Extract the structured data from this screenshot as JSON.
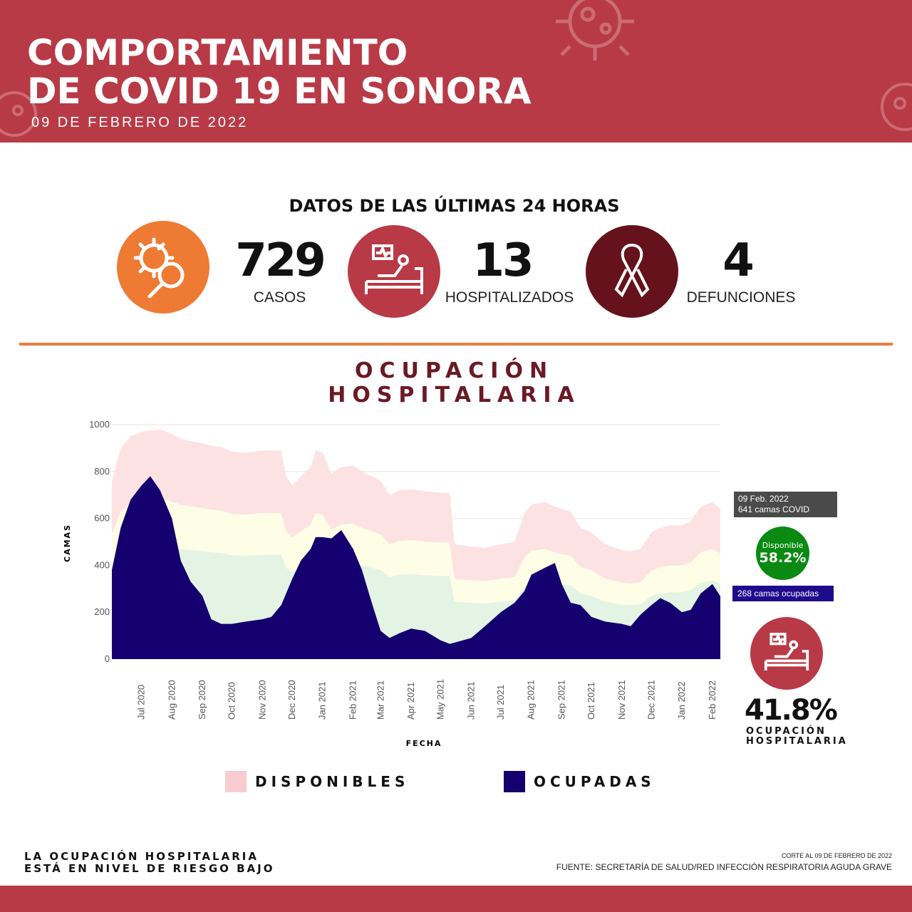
{
  "header": {
    "title_line1": "COMPORTAMIENTO",
    "title_line2": "DE COVID 19 EN SONORA",
    "date": "09 DE FEBRERO DE 2022"
  },
  "summary": {
    "heading": "DATOS DE LAS ÚLTIMAS 24 HORAS",
    "items": [
      {
        "value": "729",
        "label": "CASOS",
        "icon": "virus-magnifier-icon",
        "color": "#ee7a33"
      },
      {
        "value": "13",
        "label": "HOSPITALIZADOS",
        "icon": "hospital-bed-icon",
        "color": "#b83a46"
      },
      {
        "value": "4",
        "label": "DEFUNCIONES",
        "icon": "ribbon-icon",
        "color": "#65121c"
      }
    ]
  },
  "section": {
    "title_line1": "OCUPACIÓN",
    "title_line2": "HOSPITALARIA"
  },
  "annotations": {
    "total_date": "09 Feb. 2022",
    "total_beds": "641 camas COVID",
    "available_label": "Disponible",
    "available_pct": "58.2%",
    "occupied": "268  camas ocupadas",
    "occupancy_pct": "41.8%",
    "occupancy_label1": "OCUPACIÓN",
    "occupancy_label2": "HOSPITALARIA"
  },
  "legend": [
    {
      "label": "DISPONIBLES",
      "color": "#f9cdd0"
    },
    {
      "label": "OCUPADAS",
      "color": "#14006e"
    }
  ],
  "footer": {
    "risk_line1": "LA OCUPACIÓN HOSPITALARIA",
    "risk_line2": "ESTÁ EN NIVEL DE RIESGO BAJO",
    "cutoff": "CORTE AL 09 DE FEBRERO DE 2022",
    "source": "FUENTE: SECRETARÍA DE SALUD/RED INFECCIÓN RESPIRATORIA AGUDA GRAVE"
  },
  "chart_data": {
    "type": "area",
    "xlabel": "FECHA",
    "ylabel": "CAMAS",
    "ylim": [
      0,
      1000
    ],
    "yticks": [
      0,
      200,
      400,
      600,
      800,
      1000
    ],
    "xlim": [
      "2020-06-01",
      "2022-02-09"
    ],
    "xticks": [
      [
        "2020-07-01",
        "Jul 2020"
      ],
      [
        "2020-08-01",
        "Aug 2020"
      ],
      [
        "2020-09-01",
        "Sep 2020"
      ],
      [
        "2020-10-01",
        "Oct 2020"
      ],
      [
        "2020-11-01",
        "Nov 2020"
      ],
      [
        "2020-12-01",
        "Dec 2020"
      ],
      [
        "2021-01-01",
        "Jan 2021"
      ],
      [
        "2021-02-01",
        "Feb 2021"
      ],
      [
        "2021-03-01",
        "Mar 2021"
      ],
      [
        "2021-04-01",
        "Apr 2021"
      ],
      [
        "2021-05-01",
        "May 2021"
      ],
      [
        "2021-06-01",
        "Jun 2021"
      ],
      [
        "2021-07-01",
        "Jul 2021"
      ],
      [
        "2021-08-01",
        "Aug 2021"
      ],
      [
        "2021-09-01",
        "Sep 2021"
      ],
      [
        "2021-10-01",
        "Oct 2021"
      ],
      [
        "2021-11-01",
        "Nov 2021"
      ],
      [
        "2021-12-01",
        "Dec 2021"
      ],
      [
        "2022-01-01",
        "Jan 2022"
      ],
      [
        "2022-02-01",
        "Feb 2022"
      ]
    ],
    "grid": true,
    "band_colors": {
      "total": "#fde2e4",
      "threshold_70": "#fefde6",
      "threshold_50": "#e4f4e4",
      "occupied": "#14006e"
    },
    "dates": [
      "2020-06-01",
      "2020-06-10",
      "2020-06-20",
      "2020-07-01",
      "2020-07-10",
      "2020-07-20",
      "2020-08-01",
      "2020-08-10",
      "2020-08-20",
      "2020-09-01",
      "2020-09-10",
      "2020-09-20",
      "2020-10-01",
      "2020-10-15",
      "2020-11-01",
      "2020-11-10",
      "2020-11-20",
      "2020-11-25",
      "2020-12-01",
      "2020-12-10",
      "2020-12-20",
      "2020-12-25",
      "2021-01-01",
      "2021-01-10",
      "2021-01-20",
      "2021-02-01",
      "2021-02-10",
      "2021-02-20",
      "2021-03-01",
      "2021-03-10",
      "2021-03-20",
      "2021-04-01",
      "2021-04-15",
      "2021-05-01",
      "2021-05-10",
      "2021-05-15",
      "2021-06-01",
      "2021-06-15",
      "2021-07-01",
      "2021-07-15",
      "2021-07-25",
      "2021-08-01",
      "2021-08-15",
      "2021-08-25",
      "2021-09-01",
      "2021-09-10",
      "2021-09-20",
      "2021-10-01",
      "2021-10-15",
      "2021-11-01",
      "2021-11-10",
      "2021-11-20",
      "2021-12-01",
      "2021-12-10",
      "2021-12-20",
      "2022-01-01",
      "2022-01-10",
      "2022-01-20",
      "2022-02-01",
      "2022-02-09"
    ],
    "series": [
      {
        "key": "total",
        "values": [
          760,
          900,
          950,
          970,
          975,
          980,
          960,
          940,
          930,
          920,
          910,
          905,
          885,
          880,
          890,
          890,
          890,
          780,
          740,
          780,
          820,
          890,
          880,
          790,
          820,
          825,
          800,
          780,
          760,
          700,
          720,
          725,
          715,
          710,
          710,
          490,
          480,
          475,
          490,
          500,
          620,
          660,
          670,
          650,
          640,
          630,
          560,
          540,
          490,
          465,
          460,
          470,
          540,
          560,
          570,
          570,
          590,
          650,
          670,
          641
        ]
      },
      {
        "key": "occupied",
        "values": [
          380,
          560,
          680,
          740,
          780,
          720,
          600,
          420,
          330,
          270,
          170,
          150,
          150,
          160,
          170,
          180,
          230,
          280,
          340,
          420,
          470,
          520,
          520,
          515,
          550,
          470,
          380,
          240,
          120,
          90,
          110,
          130,
          120,
          80,
          65,
          70,
          90,
          140,
          200,
          240,
          290,
          360,
          390,
          410,
          320,
          240,
          230,
          180,
          160,
          150,
          140,
          190,
          230,
          260,
          240,
          200,
          210,
          280,
          320,
          268
        ]
      }
    ]
  }
}
